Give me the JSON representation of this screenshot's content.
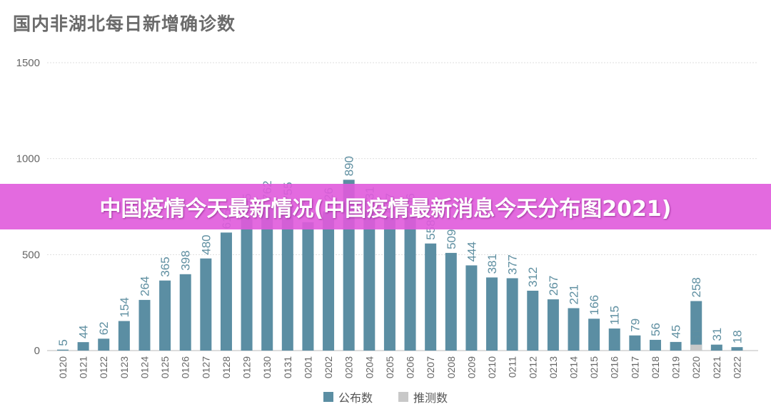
{
  "chart_data": {
    "type": "bar",
    "title": "国内非湖北每日新增确诊数",
    "xlabel": "",
    "ylabel": "",
    "ylim": [
      0,
      1500
    ],
    "yticks": [
      0,
      500,
      1000,
      1500
    ],
    "grid": true,
    "legend_position": "bottom",
    "categories": [
      "0120",
      "0121",
      "0122",
      "0123",
      "0124",
      "0125",
      "0126",
      "0127",
      "0128",
      "0129",
      "0130",
      "0131",
      "0201",
      "0202",
      "0203",
      "0204",
      "0205",
      "0206",
      "0207",
      "0208",
      "0209",
      "0210",
      "0211",
      "0212",
      "0213",
      "0214",
      "0215",
      "0216",
      "0217",
      "0218",
      "0219",
      "0220",
      "0221",
      "0222"
    ],
    "series": [
      {
        "name": "公布数",
        "color": "#5b8ea3",
        "values": [
          5,
          44,
          62,
          154,
          264,
          365,
          398,
          480,
          615,
          695,
          762,
          755,
          669,
          726,
          890,
          731,
          697,
          696,
          558,
          509,
          444,
          381,
          377,
          312,
          267,
          221,
          166,
          115,
          79,
          56,
          45,
          258,
          31,
          18
        ]
      },
      {
        "name": "推测数",
        "color": "#c8c8c8",
        "values": [
          0,
          0,
          0,
          0,
          0,
          0,
          0,
          0,
          0,
          0,
          0,
          0,
          0,
          0,
          0,
          0,
          0,
          0,
          0,
          0,
          0,
          0,
          0,
          0,
          0,
          0,
          0,
          0,
          0,
          0,
          0,
          31,
          0,
          0
        ]
      }
    ]
  },
  "banner": {
    "text": "中国疫情今天最新情况(中国疫情最新消息今天分布图2021)",
    "color": "#e05adc"
  }
}
